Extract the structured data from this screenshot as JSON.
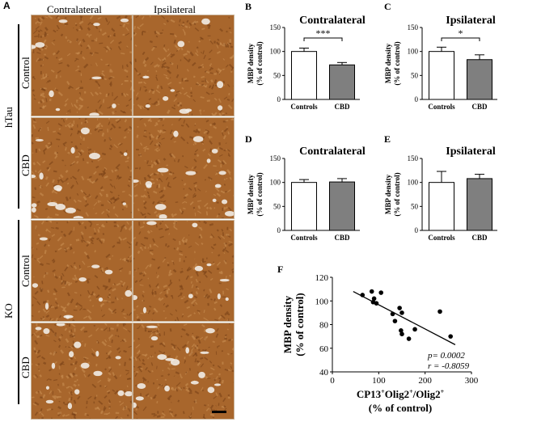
{
  "panel_a": {
    "letter": "A",
    "col_headers": [
      "Contralateral",
      "Ipsilateral"
    ],
    "row_groups": [
      {
        "label": "hTau",
        "rows": [
          "Control",
          "CBD"
        ]
      },
      {
        "label": "KO",
        "rows": [
          "Control",
          "CBD"
        ]
      }
    ],
    "tile_color": "#a8662c"
  },
  "colors": {
    "control_bar": "#ffffff",
    "cbd_bar": "#7f7f7f"
  },
  "chart_data": [
    {
      "letter": "B",
      "type": "bar",
      "title": "Contralateral",
      "categories": [
        "Controls",
        "CBD"
      ],
      "values": [
        100,
        72
      ],
      "errors": [
        7,
        5
      ],
      "ylabel": [
        "MBP density",
        "(% of control)"
      ],
      "ylim": [
        0,
        150
      ],
      "yticks": [
        0,
        50,
        100,
        150
      ],
      "significance": "***"
    },
    {
      "letter": "C",
      "type": "bar",
      "title": "Ipsilateral",
      "categories": [
        "Controls",
        "CBD"
      ],
      "values": [
        100,
        83
      ],
      "errors": [
        9,
        10
      ],
      "ylabel": [
        "MBP density",
        "(% of control)"
      ],
      "ylim": [
        0,
        150
      ],
      "yticks": [
        0,
        50,
        100,
        150
      ],
      "significance": "*"
    },
    {
      "letter": "D",
      "type": "bar",
      "title": "Contralateral",
      "categories": [
        "Controls",
        "CBD"
      ],
      "values": [
        100,
        101
      ],
      "errors": [
        6,
        7
      ],
      "ylabel": [
        "MBP density",
        "(% of control)"
      ],
      "ylim": [
        0,
        150
      ],
      "yticks": [
        0,
        50,
        100,
        150
      ],
      "significance": ""
    },
    {
      "letter": "E",
      "type": "bar",
      "title": "Ipsilateral",
      "categories": [
        "Controls",
        "CBD"
      ],
      "values": [
        100,
        108
      ],
      "errors": [
        23,
        9
      ],
      "ylabel": [
        "MBP density",
        "(% of control)"
      ],
      "ylim": [
        0,
        150
      ],
      "yticks": [
        0,
        50,
        100,
        150
      ],
      "significance": ""
    },
    {
      "letter": "F",
      "type": "scatter",
      "xlabel": [
        "CP13",
        "+",
        "Olig2",
        "+",
        "/Olig2",
        "+"
      ],
      "xlabel2": "(% of control)",
      "ylabel": [
        "MBP density",
        "(% of control)"
      ],
      "xlim": [
        0,
        300
      ],
      "ylim": [
        40,
        120
      ],
      "xticks": [
        0,
        100,
        200,
        300
      ],
      "yticks": [
        40,
        60,
        80,
        100,
        120
      ],
      "points": [
        [
          65,
          105
        ],
        [
          85,
          108
        ],
        [
          90,
          102
        ],
        [
          88,
          99
        ],
        [
          105,
          107
        ],
        [
          95,
          98
        ],
        [
          130,
          89
        ],
        [
          135,
          83
        ],
        [
          145,
          94
        ],
        [
          150,
          90
        ],
        [
          148,
          75
        ],
        [
          150,
          72
        ],
        [
          165,
          68
        ],
        [
          178,
          76
        ],
        [
          232,
          91
        ],
        [
          255,
          70
        ]
      ],
      "fit": {
        "x": [
          45,
          265
        ],
        "y": [
          108,
          63
        ]
      },
      "stats": [
        "p=  0.0002",
        "r = -0.8059"
      ]
    }
  ]
}
